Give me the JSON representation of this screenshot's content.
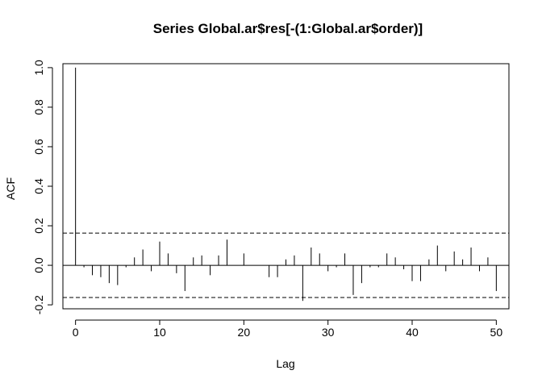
{
  "chart_data": {
    "type": "bar",
    "title": "Series  Global.ar$res[-(1:Global.ar$order)]",
    "xlabel": "Lag",
    "ylabel": "ACF",
    "xlim": [
      -1.5,
      51.5
    ],
    "ylim": [
      -0.22,
      1.02
    ],
    "x_ticks": [
      "0",
      "10",
      "20",
      "30",
      "40",
      "50"
    ],
    "y_ticks": [
      "-0.2",
      "0.0",
      "0.2",
      "0.4",
      "0.6",
      "0.8",
      "1.0"
    ],
    "confidence_bound": 0.163,
    "grid": false,
    "legend": "none",
    "lags": [
      0,
      1,
      2,
      3,
      4,
      5,
      6,
      7,
      8,
      9,
      10,
      11,
      12,
      13,
      14,
      15,
      16,
      17,
      18,
      19,
      20,
      21,
      22,
      23,
      24,
      25,
      26,
      27,
      28,
      29,
      30,
      31,
      32,
      33,
      34,
      35,
      36,
      37,
      38,
      39,
      40,
      41,
      42,
      43,
      44,
      45,
      46,
      47,
      48,
      49,
      50
    ],
    "values": [
      1.0,
      -0.01,
      -0.05,
      -0.06,
      -0.09,
      -0.1,
      -0.01,
      0.04,
      0.08,
      -0.03,
      0.12,
      0.06,
      -0.04,
      -0.13,
      0.04,
      0.05,
      -0.05,
      0.05,
      0.13,
      0.0,
      0.06,
      0.0,
      0.0,
      -0.06,
      -0.06,
      0.03,
      0.05,
      -0.18,
      0.09,
      0.06,
      -0.03,
      -0.01,
      0.06,
      -0.15,
      -0.09,
      -0.01,
      -0.01,
      0.06,
      0.04,
      -0.02,
      -0.08,
      -0.08,
      0.03,
      0.1,
      -0.03,
      0.07,
      0.03,
      0.09,
      -0.03,
      0.04,
      -0.13
    ]
  }
}
